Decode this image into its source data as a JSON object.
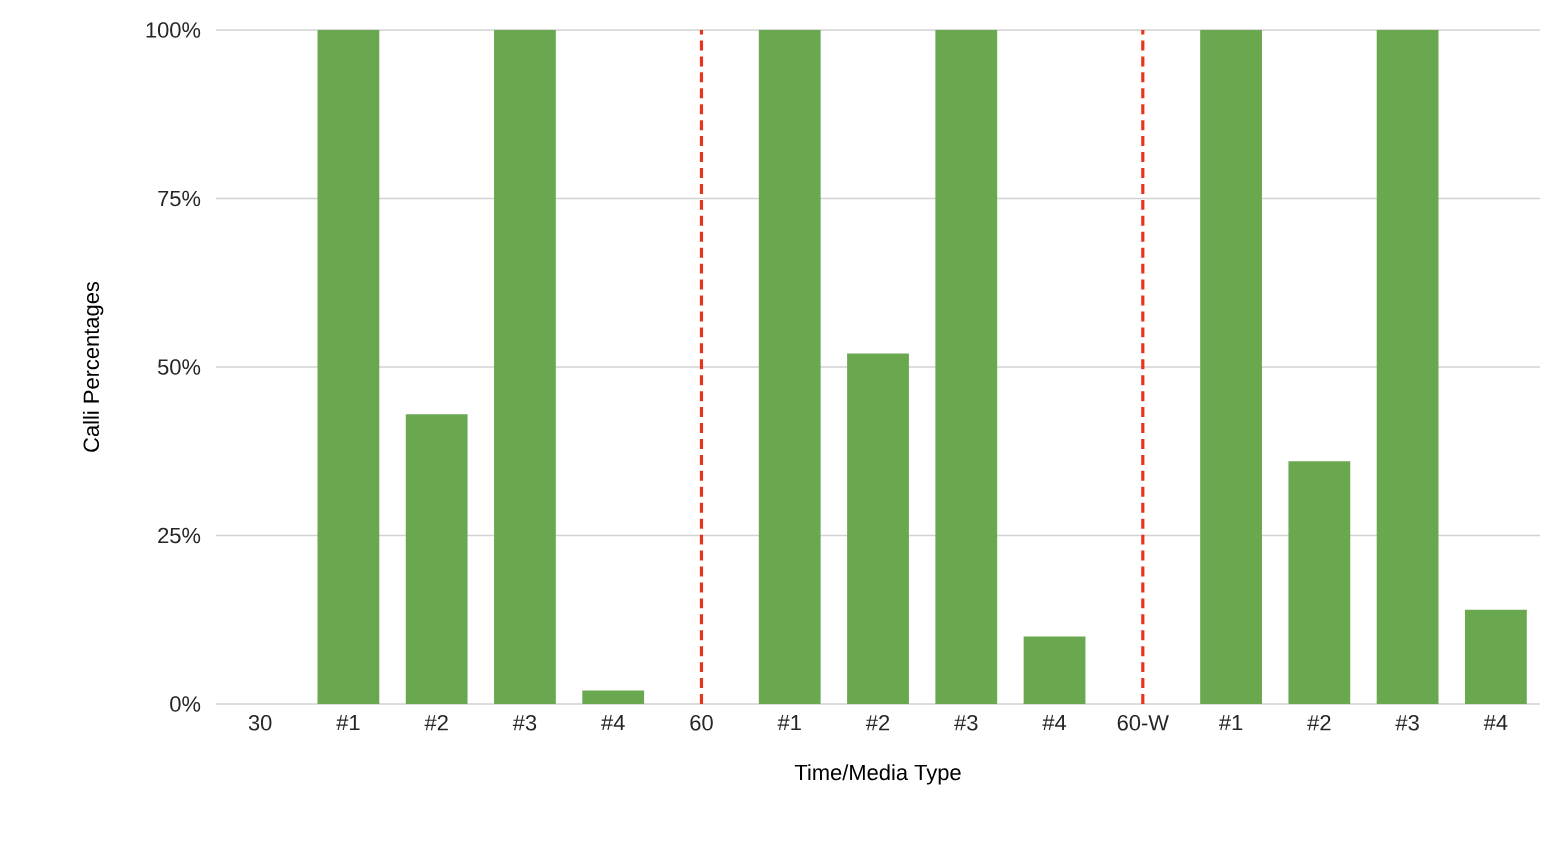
{
  "chart_data": {
    "type": "bar",
    "xlabel": "Time/Media Type",
    "ylabel": "Calli Percentages",
    "categories": [
      "30",
      "#1",
      "#2",
      "#3",
      "#4",
      "60",
      "#1",
      "#2",
      "#3",
      "#4",
      "60-W",
      "#1",
      "#2",
      "#3",
      "#4"
    ],
    "values": [
      null,
      100,
      43,
      100,
      2,
      null,
      100,
      52,
      100,
      10,
      null,
      100,
      36,
      100,
      14
    ],
    "color": "#6aa84f",
    "ylim": [
      0,
      100
    ],
    "yticks": [
      {
        "value": 0,
        "label": "0%"
      },
      {
        "value": 25,
        "label": "25%"
      },
      {
        "value": 50,
        "label": "50%"
      },
      {
        "value": 75,
        "label": "75%"
      },
      {
        "value": 100,
        "label": "100%"
      }
    ],
    "grid": "y",
    "ref_lines": [
      {
        "axis": "x",
        "value": "60",
        "color": "#e8341c",
        "line_style": "dashed"
      },
      {
        "axis": "x",
        "value": "60-W",
        "color": "#e8341c",
        "line_style": "dashed"
      }
    ]
  }
}
